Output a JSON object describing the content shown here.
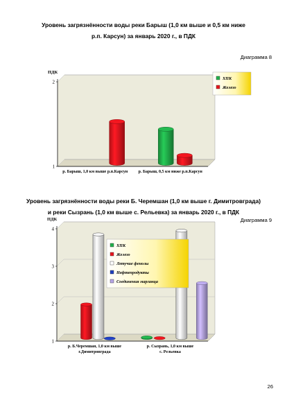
{
  "page": {
    "title1_line1": "Уровень загрязнённости воды реки Барыш (1,0 км выше и 0,5 км ниже",
    "title1_line2": "р.п. Карсун) за январь 2020 г., в ПДК",
    "diagram1_label": "Диаграмма 8",
    "title2_line1": "Уровень загрязнённости воды реки Б. Черемшан (1,0 км выше г. Димитровграда)",
    "title2_line2": "и реки Сызрань (1,0 км выше с. Рельевка) за январь 2020 г., в ПДК",
    "diagram2_label": "Диаграмма 9",
    "page_number": "26"
  },
  "colors": {
    "hpk": "#22b14c",
    "iron": "#e8161e",
    "phenols": "#ffffff",
    "oil": "#1f3fbf",
    "manganese": "#b7a6e6",
    "wall": "#ecebdc",
    "floor": "#dcd9c4"
  },
  "chart_data": [
    {
      "type": "bar",
      "ylabel": "ПДК",
      "ylim": [
        1,
        2
      ],
      "yticks": [
        "1",
        "2"
      ],
      "categories": [
        "р. Барыш, 1,0 км выше р.п.Карсун",
        "р. Барыш, 0,5 км ниже р.п.Карсун"
      ],
      "legend_position": "top-right",
      "series": [
        {
          "name": "ХПК",
          "color_key": "hpk",
          "values": [
            null,
            1.44
          ]
        },
        {
          "name": "Железо",
          "color_key": "iron",
          "values": [
            1.53,
            1.13
          ]
        }
      ]
    },
    {
      "type": "bar",
      "ylabel": "ПДК",
      "ylim": [
        1,
        4
      ],
      "yticks": [
        "1",
        "2",
        "3",
        "4"
      ],
      "categories": [
        "р. Б.Черемшан, 1,0 км выше г.Димитровграда",
        "р. Сызрань, 1,0 км выше с. Рельевка"
      ],
      "legend_position": "top-center",
      "series": [
        {
          "name": "ХПК",
          "color_key": "hpk",
          "values": [
            null,
            1.1
          ]
        },
        {
          "name": "Железо",
          "color_key": "iron",
          "values": [
            1.98,
            1.08
          ]
        },
        {
          "name": "Летучие фенолы",
          "color_key": "phenols",
          "values": [
            3.85,
            3.95
          ]
        },
        {
          "name": "Нефтепродукты",
          "color_key": "oil",
          "values": [
            1.07,
            null
          ]
        },
        {
          "name": "Соединения марганца",
          "color_key": "manganese",
          "values": [
            null,
            2.55
          ]
        }
      ]
    }
  ]
}
